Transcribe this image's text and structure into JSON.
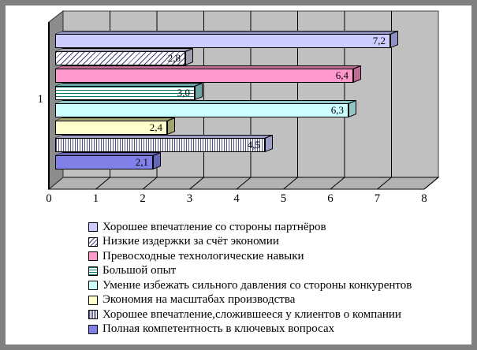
{
  "window": {
    "background": "#ffffff",
    "border_color": "#808080"
  },
  "chart_data": {
    "type": "bar",
    "orientation": "horizontal",
    "title": "",
    "category_axis_label": "1",
    "xlabel": "",
    "ylabel": "",
    "xlim": [
      0,
      8
    ],
    "x_ticks": [
      "0",
      "1",
      "2",
      "3",
      "4",
      "5",
      "6",
      "7",
      "8"
    ],
    "grid": true,
    "legend_position": "bottom",
    "wall_color": "#C0C0C0",
    "floor_color": "#B3B3B3",
    "side_wall_color": "#8C8C8C",
    "series": [
      {
        "name": "Хорошее впечатление со стороны партнёров",
        "value": 7.2,
        "label": "7,2",
        "fill": "#CCCCFF",
        "dark": "#9090C0",
        "pattern": "solid",
        "pattern_color": ""
      },
      {
        "name": "Низкие издержки за счёт экономии",
        "value": 2.8,
        "label": "2,8",
        "fill": "#FFFFFF",
        "dark": "#9E9EAE",
        "pattern": "diag",
        "pattern_color": "#404080"
      },
      {
        "name": "Превосходные технологические навыки",
        "value": 6.4,
        "label": "6,4",
        "fill": "#FF99CC",
        "dark": "#C06A96",
        "pattern": "solid",
        "pattern_color": ""
      },
      {
        "name": "Большой опыт",
        "value": 3.0,
        "label": "3,0",
        "fill": "#FFFFFF",
        "dark": "#6FA3A3",
        "pattern": "hlines",
        "pattern_color": "#007878"
      },
      {
        "name": "Умение избежать сильного давления со стороны конкурентов",
        "value": 6.3,
        "label": "6,3",
        "fill": "#CCFFFF",
        "dark": "#93C6C6",
        "pattern": "solid",
        "pattern_color": ""
      },
      {
        "name": "Экономия на масштабах производства",
        "value": 2.4,
        "label": "2,4",
        "fill": "#FFFFCC",
        "dark": "#A3A370",
        "pattern": "solid",
        "pattern_color": ""
      },
      {
        "name": "Хорошее впечатление,сложившееся у клиентов о компании",
        "value": 4.5,
        "label": "4,5",
        "fill": "#FFFFFF",
        "dark": "#9C9CC4",
        "pattern": "vlines",
        "pattern_color": "#50508C"
      },
      {
        "name": "Полная компетентность в ключевых вопросах",
        "value": 2.1,
        "label": "2,1",
        "fill": "#8080E8",
        "dark": "#6666B8",
        "pattern": "solid",
        "pattern_color": ""
      }
    ]
  }
}
